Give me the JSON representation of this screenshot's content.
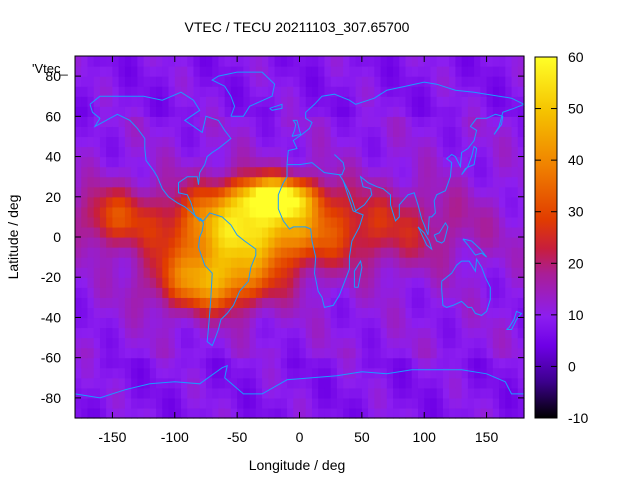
{
  "chart_data": {
    "type": "heatmap",
    "title": "VTEC / TECU 20211103_307.65700",
    "xlabel": "Longitude / deg",
    "ylabel": "Latitude / deg",
    "xlim": [
      -180,
      180
    ],
    "ylim": [
      -90,
      90
    ],
    "x_ticks": [
      -150,
      -100,
      -50,
      0,
      50,
      100,
      150
    ],
    "y_ticks": [
      -80,
      -60,
      -40,
      -20,
      0,
      20,
      40,
      60,
      80
    ],
    "colorbar": {
      "min": -10,
      "max": 60,
      "ticks": [
        -10,
        0,
        10,
        20,
        30,
        40,
        50,
        60
      ],
      "palette": "black-blue-purple-red-orange-yellow"
    },
    "legend": {
      "entry": "'Vtec_",
      "position": "top-left"
    },
    "background_level_tecu": 10,
    "enhancement_regions": [
      {
        "name": "equatorial-anomaly-south-america",
        "lon_center": -45,
        "lat_center": 5,
        "lon_width": 120,
        "lat_width": 40,
        "peak_tecu": 52
      },
      {
        "name": "southern-crest-americas",
        "lon_center": -70,
        "lat_center": -22,
        "lon_width": 90,
        "lat_width": 30,
        "peak_tecu": 42
      },
      {
        "name": "northern-crest-atlantic",
        "lon_center": -20,
        "lat_center": 20,
        "lon_width": 60,
        "lat_width": 18,
        "peak_tecu": 50
      },
      {
        "name": "equatorial-belt-africa-indian-ocean",
        "lon_center": 60,
        "lat_center": 5,
        "lon_width": 160,
        "lat_width": 40,
        "peak_tecu": 24
      },
      {
        "name": "north-pacific-tail",
        "lon_center": -150,
        "lat_center": 10,
        "lon_width": 60,
        "lat_width": 30,
        "peak_tecu": 28
      }
    ],
    "annotations": [
      "coastlines overlay"
    ]
  },
  "colors": {
    "coastline": "#1a9cff",
    "background": "#ffffff"
  }
}
